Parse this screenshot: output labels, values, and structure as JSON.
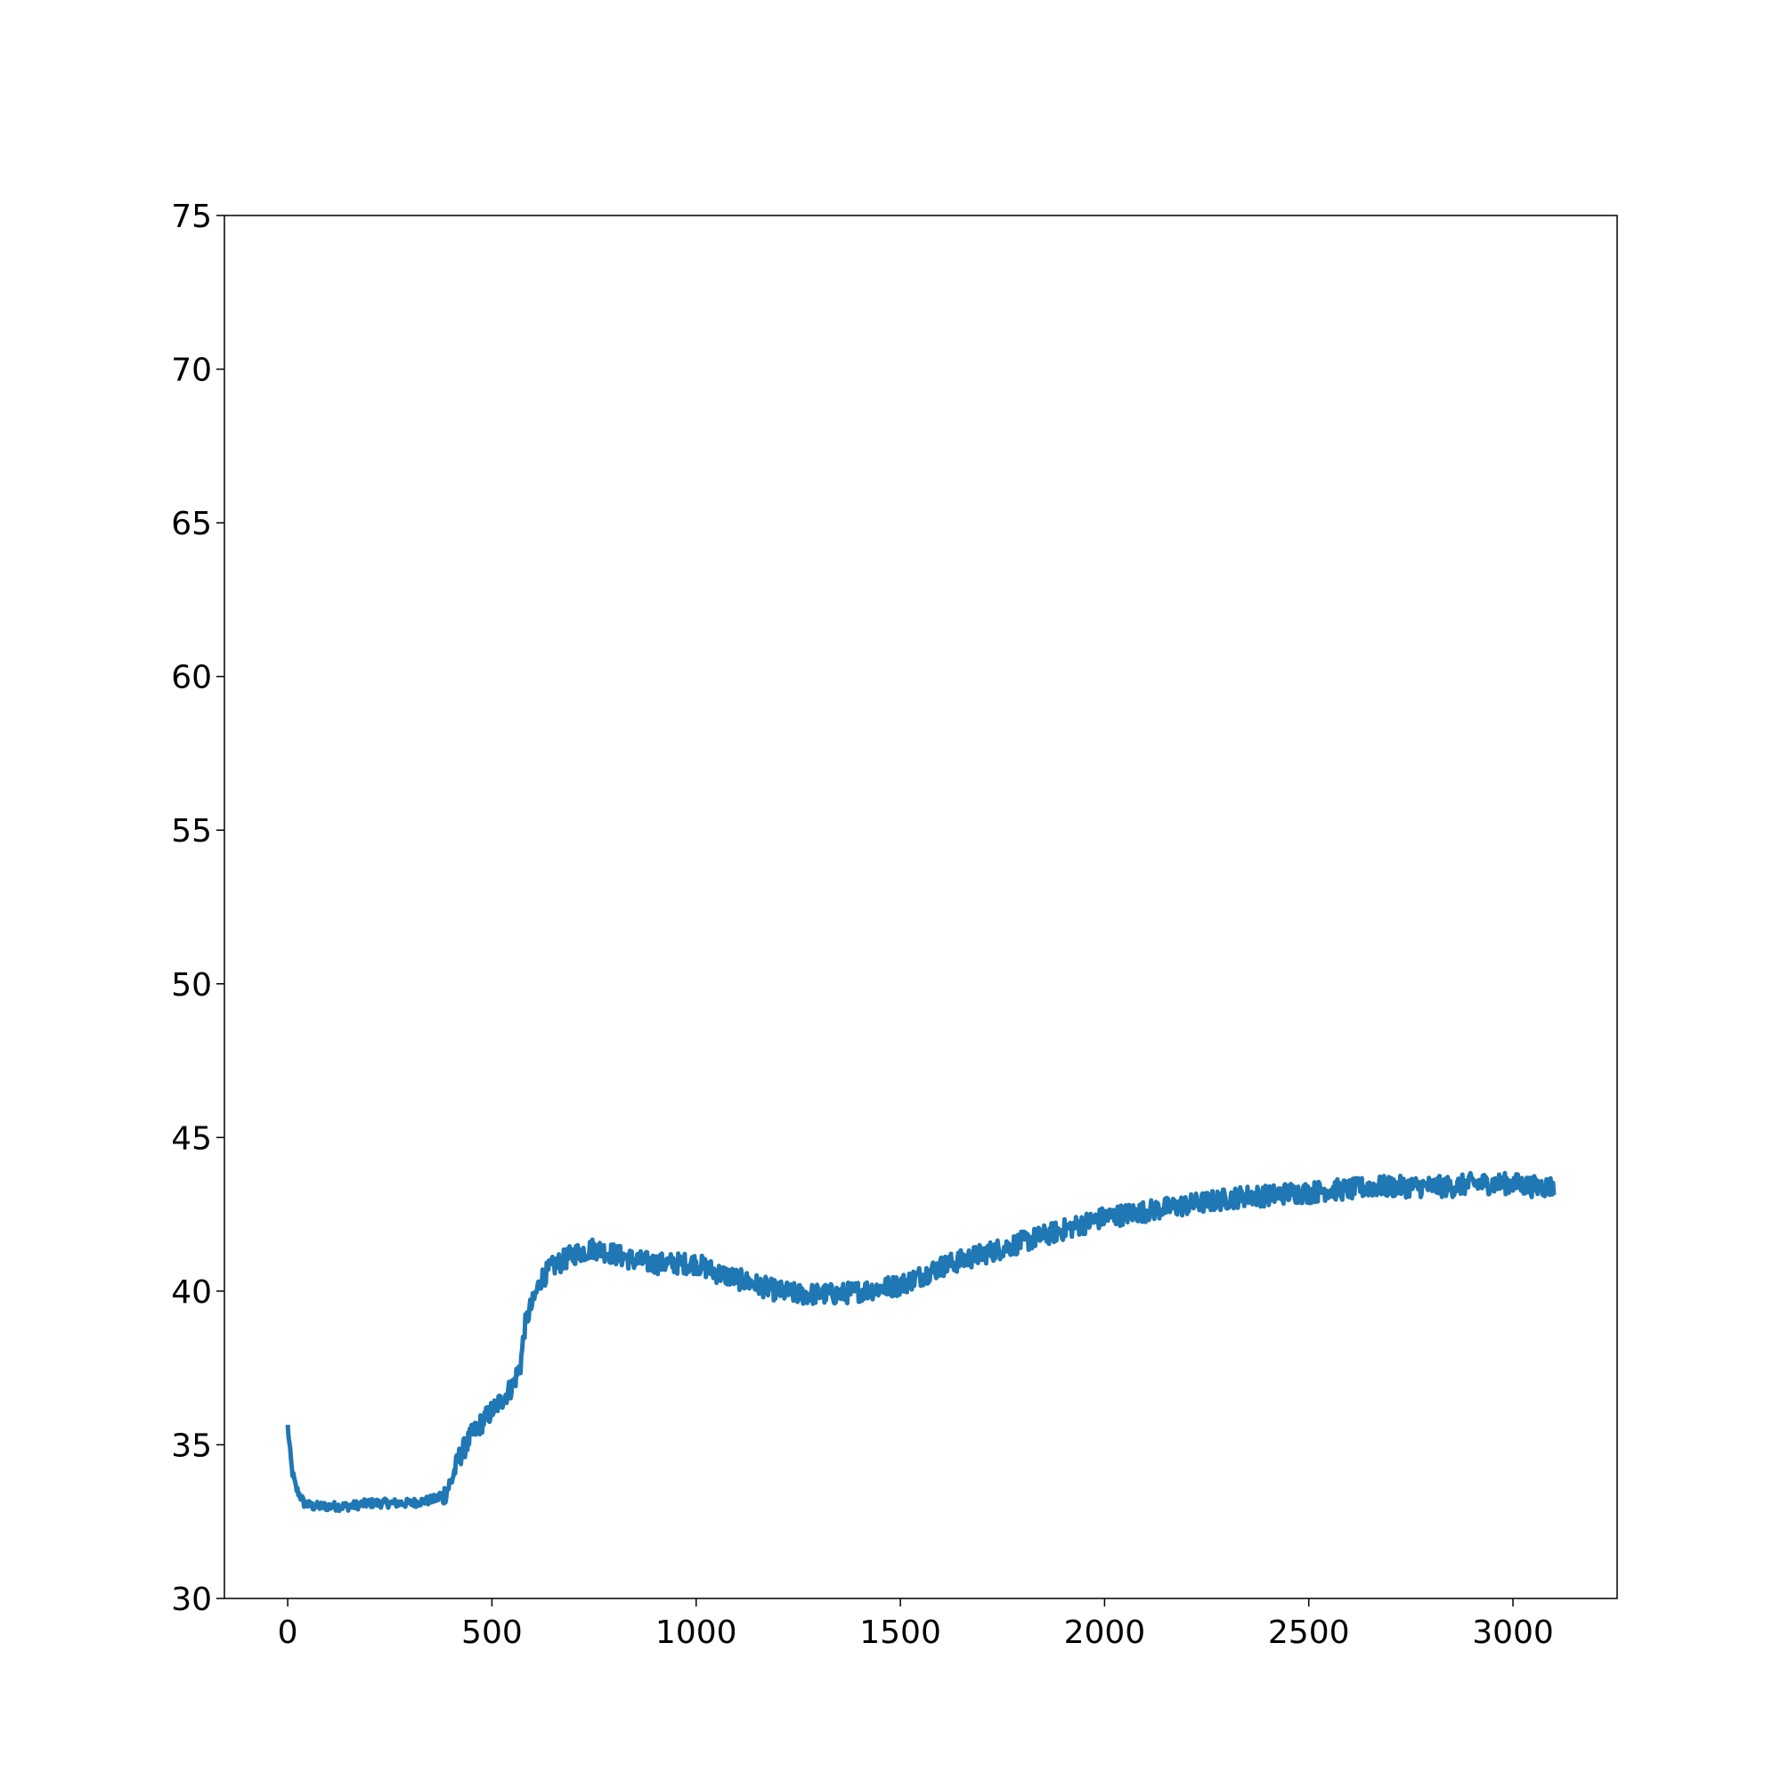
{
  "chart_data": {
    "type": "line",
    "title": "",
    "xlabel": "",
    "ylabel": "",
    "xlim": [
      -155,
      3255
    ],
    "ylim": [
      30,
      75
    ],
    "xticks": [
      0,
      500,
      1000,
      1500,
      2000,
      2500,
      3000
    ],
    "yticks": [
      30,
      35,
      40,
      45,
      50,
      55,
      60,
      65,
      70,
      75
    ],
    "grid": false,
    "legend": "none",
    "series": [
      {
        "color": "#1f77b4",
        "x": [
          0,
          10,
          20,
          40,
          60,
          100,
          150,
          200,
          250,
          300,
          350,
          380,
          400,
          420,
          450,
          480,
          500,
          520,
          550,
          570,
          580,
          590,
          600,
          620,
          650,
          700,
          750,
          800,
          850,
          900,
          950,
          1000,
          1050,
          1100,
          1150,
          1200,
          1250,
          1300,
          1350,
          1400,
          1450,
          1500,
          1550,
          1600,
          1650,
          1700,
          1750,
          1800,
          1850,
          1900,
          1950,
          2000,
          2050,
          2100,
          2150,
          2200,
          2250,
          2300,
          2350,
          2400,
          2450,
          2500,
          2550,
          2600,
          2650,
          2700,
          2750,
          2800,
          2850,
          2900,
          2950,
          3000,
          3050,
          3100
        ],
        "y": [
          35.6,
          34.2,
          33.6,
          33.1,
          33.0,
          33.0,
          33.0,
          33.1,
          33.1,
          33.1,
          33.2,
          33.3,
          33.8,
          34.6,
          35.3,
          35.8,
          36.1,
          36.4,
          36.9,
          37.6,
          38.8,
          39.3,
          39.6,
          40.4,
          40.8,
          41.2,
          41.4,
          41.2,
          41.0,
          40.9,
          40.9,
          40.9,
          40.6,
          40.4,
          40.2,
          40.0,
          39.9,
          39.9,
          39.9,
          40.0,
          40.1,
          40.2,
          40.5,
          40.8,
          41.0,
          41.2,
          41.4,
          41.6,
          41.8,
          42.0,
          42.2,
          42.4,
          42.5,
          42.6,
          42.7,
          42.8,
          42.9,
          43.0,
          43.1,
          43.1,
          43.2,
          43.2,
          43.3,
          43.3,
          43.4,
          43.4,
          43.4,
          43.4,
          43.4,
          43.5,
          43.5,
          43.5,
          43.4,
          43.4
        ],
        "noise": 0.35
      }
    ]
  }
}
